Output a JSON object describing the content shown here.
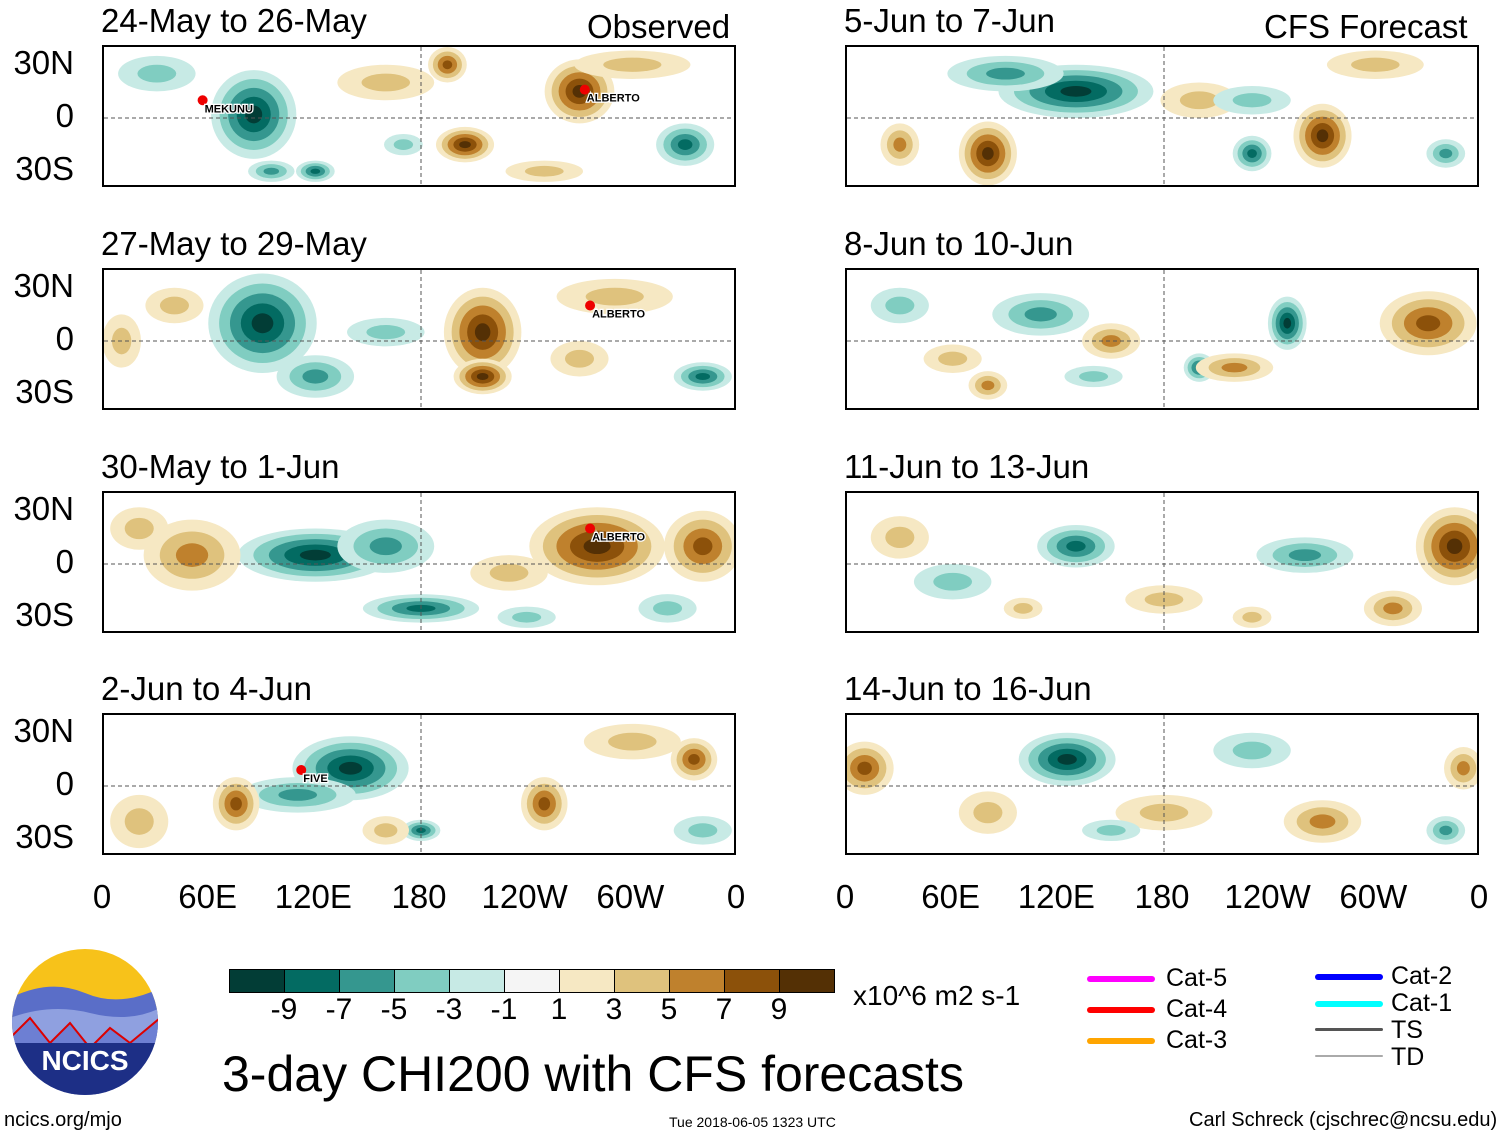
{
  "header": {
    "observed": "Observed",
    "forecast": "CFS Forecast"
  },
  "lat_labels": [
    "30N",
    "0",
    "30S"
  ],
  "lon_labels": [
    "0",
    "60E",
    "120E",
    "180",
    "120W",
    "60W",
    "0"
  ],
  "panels": [
    {
      "title": "24-May to 26-May",
      "storms": [
        {
          "name": "MEKUNU",
          "lon": 56,
          "lat": 10
        },
        {
          "name": "ALBERTO",
          "lon": 273,
          "lat": 16
        }
      ],
      "blobs": [
        [
          85,
          2,
          -9,
          22,
          25
        ],
        [
          120,
          -30,
          -6,
          10,
          6
        ],
        [
          330,
          -15,
          -6,
          15,
          12
        ],
        [
          270,
          15,
          8,
          18,
          18
        ],
        [
          205,
          -15,
          8,
          15,
          10
        ],
        [
          195,
          30,
          7,
          10,
          10
        ],
        [
          160,
          20,
          3,
          25,
          10
        ],
        [
          300,
          30,
          3,
          30,
          8
        ],
        [
          30,
          25,
          -2,
          20,
          10
        ],
        [
          250,
          -30,
          3,
          20,
          6
        ],
        [
          95,
          -30,
          -4,
          12,
          6
        ],
        [
          170,
          -15,
          -3,
          10,
          6
        ]
      ]
    },
    {
      "title": "27-May to 29-May",
      "storms": [
        {
          "name": "ALBERTO",
          "lon": 276,
          "lat": 20
        }
      ],
      "blobs": [
        [
          90,
          10,
          -9,
          28,
          28
        ],
        [
          120,
          -20,
          -4,
          20,
          12
        ],
        [
          160,
          5,
          -3,
          20,
          8
        ],
        [
          215,
          5,
          9,
          20,
          25
        ],
        [
          215,
          -20,
          8,
          15,
          10
        ],
        [
          340,
          -20,
          -6,
          15,
          8
        ],
        [
          290,
          25,
          3,
          30,
          10
        ],
        [
          40,
          20,
          2,
          15,
          10
        ],
        [
          270,
          -10,
          2,
          15,
          10
        ],
        [
          10,
          0,
          2,
          10,
          15
        ]
      ]
    },
    {
      "title": "30-May to 1-Jun",
      "storms": [
        {
          "name": "ALBERTO",
          "lon": 276,
          "lat": 20
        }
      ],
      "blobs": [
        [
          120,
          5,
          -9,
          40,
          15
        ],
        [
          180,
          -25,
          -6,
          30,
          8
        ],
        [
          160,
          10,
          -5,
          25,
          15
        ],
        [
          280,
          10,
          9,
          35,
          22
        ],
        [
          340,
          10,
          6,
          20,
          20
        ],
        [
          50,
          5,
          5,
          25,
          20
        ],
        [
          230,
          -5,
          3,
          20,
          10
        ],
        [
          20,
          20,
          3,
          15,
          12
        ],
        [
          320,
          -25,
          -3,
          15,
          8
        ],
        [
          240,
          -30,
          -3,
          15,
          6
        ]
      ]
    },
    {
      "title": "2-Jun to 4-Jun",
      "storms": [
        {
          "name": "FIVE",
          "lon": 112,
          "lat": 9
        }
      ],
      "blobs": [
        [
          140,
          10,
          -9,
          30,
          18
        ],
        [
          180,
          -25,
          -7,
          10,
          6
        ],
        [
          110,
          -5,
          -5,
          30,
          10
        ],
        [
          75,
          -10,
          7,
          12,
          15
        ],
        [
          250,
          -10,
          6,
          12,
          15
        ],
        [
          335,
          15,
          6,
          12,
          12
        ],
        [
          160,
          -25,
          3,
          12,
          8
        ],
        [
          20,
          -20,
          3,
          15,
          15
        ],
        [
          300,
          25,
          3,
          25,
          10
        ],
        [
          340,
          -25,
          -3,
          15,
          8
        ]
      ]
    },
    {
      "title": "5-Jun to 7-Jun",
      "storms": [],
      "blobs": [
        [
          130,
          15,
          -8,
          40,
          15
        ],
        [
          90,
          25,
          -4,
          30,
          10
        ],
        [
          270,
          -10,
          8,
          15,
          18
        ],
        [
          80,
          -20,
          9,
          15,
          18
        ],
        [
          30,
          -15,
          5,
          10,
          12
        ],
        [
          230,
          -20,
          -6,
          10,
          10
        ],
        [
          200,
          10,
          3,
          20,
          10
        ],
        [
          340,
          -20,
          -5,
          10,
          8
        ],
        [
          230,
          10,
          -3,
          20,
          8
        ],
        [
          300,
          30,
          3,
          25,
          8
        ]
      ]
    },
    {
      "title": "8-Jun to 10-Jun",
      "storms": [
        {
          "name": "",
          "lon": 0,
          "lat": 0
        }
      ],
      "blobs": [
        [
          250,
          10,
          -8,
          10,
          15
        ],
        [
          330,
          10,
          7,
          25,
          18
        ],
        [
          110,
          15,
          -5,
          25,
          12
        ],
        [
          30,
          20,
          -3,
          15,
          10
        ],
        [
          200,
          -15,
          -6,
          8,
          8
        ],
        [
          80,
          -25,
          5,
          10,
          8
        ],
        [
          150,
          0,
          4,
          15,
          10
        ],
        [
          220,
          -15,
          4,
          20,
          8
        ],
        [
          140,
          -20,
          -3,
          15,
          6
        ],
        [
          60,
          -10,
          2,
          15,
          8
        ]
      ]
    },
    {
      "title": "11-Jun to 13-Jun",
      "storms": [],
      "blobs": [
        [
          345,
          10,
          8,
          20,
          22
        ],
        [
          130,
          10,
          -6,
          20,
          12
        ],
        [
          260,
          5,
          -5,
          25,
          10
        ],
        [
          30,
          15,
          3,
          15,
          12
        ],
        [
          310,
          -25,
          4,
          15,
          10
        ],
        [
          60,
          -10,
          -3,
          20,
          10
        ],
        [
          180,
          -20,
          3,
          20,
          8
        ],
        [
          230,
          -30,
          3,
          10,
          6
        ],
        [
          100,
          -25,
          3,
          10,
          6
        ]
      ]
    },
    {
      "title": "14-Jun to 16-Jun",
      "storms": [],
      "blobs": [
        [
          125,
          15,
          -8,
          25,
          15
        ],
        [
          10,
          10,
          6,
          15,
          15
        ],
        [
          270,
          -20,
          5,
          20,
          12
        ],
        [
          350,
          10,
          5,
          10,
          12
        ],
        [
          180,
          -15,
          3,
          25,
          10
        ],
        [
          340,
          -25,
          -4,
          10,
          8
        ],
        [
          80,
          -15,
          3,
          15,
          12
        ],
        [
          230,
          20,
          -2,
          20,
          10
        ],
        [
          150,
          -25,
          -3,
          15,
          6
        ]
      ]
    }
  ],
  "colorbar": {
    "labels": [
      "-9",
      "-7",
      "-5",
      "-3",
      "-1",
      "1",
      "3",
      "5",
      "7",
      "9"
    ],
    "colors": [
      "#023d36",
      "#036b62",
      "#35978f",
      "#80cdc1",
      "#c7eae5",
      "#f5f5f5",
      "#f6e8c3",
      "#dfc27d",
      "#bf812d",
      "#8c510a",
      "#543005"
    ],
    "units": "x10^6 m2 s-1"
  },
  "legend": {
    "items": [
      {
        "label": "Cat-5",
        "color": "#ff00ff"
      },
      {
        "label": "Cat-4",
        "color": "#ff0000"
      },
      {
        "label": "Cat-3",
        "color": "#ffa500"
      },
      {
        "label": "Cat-2",
        "color": "#0000ff"
      },
      {
        "label": "Cat-1",
        "color": "#00ffff"
      },
      {
        "label": "TS",
        "color": "#555555"
      },
      {
        "label": "TD",
        "color": "#aaaaaa"
      }
    ]
  },
  "logo": {
    "text": "NCICS"
  },
  "footer": {
    "title": "3-day CHI200 with CFS forecasts",
    "url": "ncics.org/mjo",
    "timestamp": "Tue 2018-06-05 1323 UTC",
    "author": "Carl Schreck (cjschrec@ncsu.edu)"
  }
}
